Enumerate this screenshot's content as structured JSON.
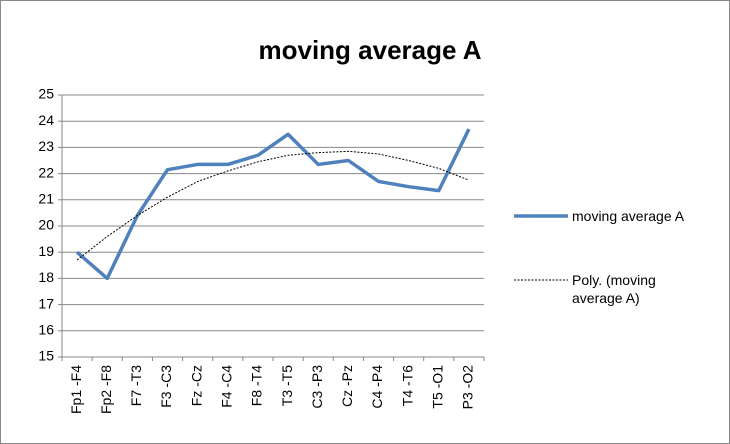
{
  "chart_data": {
    "type": "line",
    "title": "moving average A",
    "categories": [
      "Fp1 -F4",
      "Fp2 -F8",
      "F7 -T3",
      "F3 -C3",
      "Fz -Cz",
      "F4 -C4",
      "F8 -T4",
      "T3 -T5",
      "C3 -P3",
      "Cz -Pz",
      "C4 -P4",
      "T4 -T6",
      "T5 -O1",
      "P3 -O2"
    ],
    "series": [
      {
        "name": "moving average A",
        "color": "#4f81bd",
        "values": [
          19.0,
          18.0,
          20.4,
          22.15,
          22.35,
          22.35,
          22.7,
          23.5,
          22.35,
          22.5,
          21.7,
          21.5,
          21.35,
          23.7
        ]
      },
      {
        "name": "Poly. (moving average A)",
        "color": "#000000",
        "dashed": true,
        "values": [
          18.7,
          19.6,
          20.4,
          21.1,
          21.7,
          22.1,
          22.45,
          22.7,
          22.8,
          22.85,
          22.75,
          22.5,
          22.2,
          21.75
        ]
      }
    ],
    "ylim": [
      15,
      25
    ],
    "yticks": [
      15,
      16,
      17,
      18,
      19,
      20,
      21,
      22,
      23,
      24,
      25
    ],
    "grid": true,
    "legend": "right"
  }
}
